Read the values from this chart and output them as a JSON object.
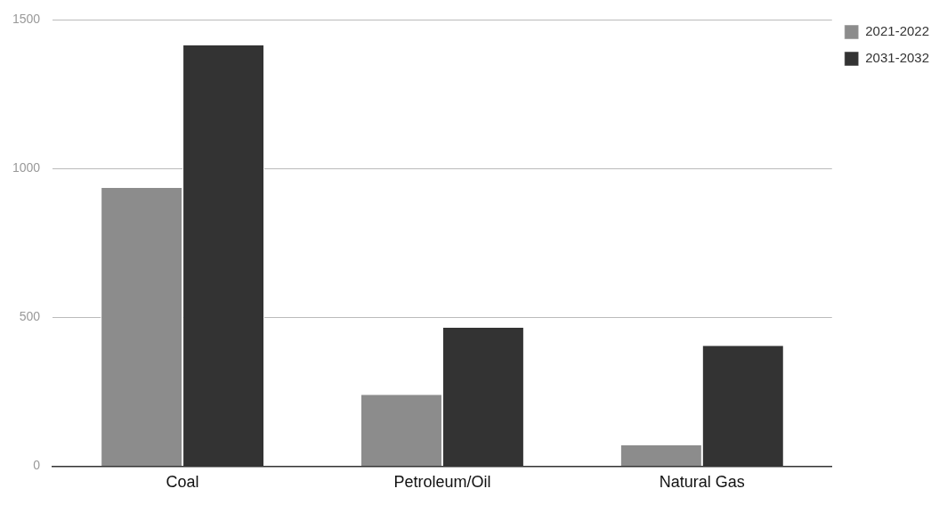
{
  "chart_data": {
    "type": "bar",
    "categories": [
      "Coal",
      "Petroleum/Oil",
      "Natural Gas"
    ],
    "series": [
      {
        "name": "2021-2022",
        "color": "#8c8c8c",
        "values": [
          935,
          240,
          70
        ]
      },
      {
        "name": "2031-2032",
        "color": "#333333",
        "values": [
          1415,
          465,
          405
        ]
      }
    ],
    "ylim": [
      0,
      1500
    ],
    "yticks": [
      0,
      500,
      1000,
      1500
    ],
    "grid": "y",
    "legend": "top right"
  }
}
